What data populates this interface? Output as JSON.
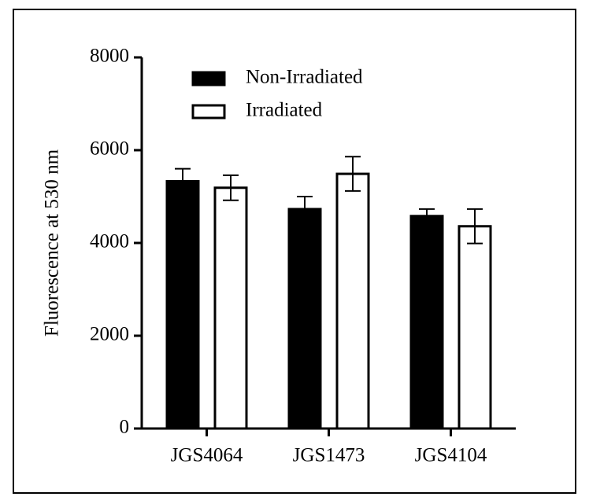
{
  "chart_data": {
    "type": "bar",
    "y_label": "Fluorescence at 530 nm",
    "categories": [
      "JGS4064",
      "JGS1473",
      "JGS4104"
    ],
    "series": [
      {
        "name": "Non-Irradiated",
        "color": "#000000",
        "values": [
          5330,
          4730,
          4580
        ],
        "errors": [
          270,
          270,
          150
        ]
      },
      {
        "name": "Irradiated",
        "color": "#ffffff",
        "values": [
          5190,
          5490,
          4360
        ],
        "errors": [
          270,
          370,
          370
        ]
      }
    ],
    "ylim": [
      0,
      8000
    ],
    "yticks": [
      0,
      2000,
      4000,
      6000,
      8000
    ],
    "legend": "top-left"
  }
}
